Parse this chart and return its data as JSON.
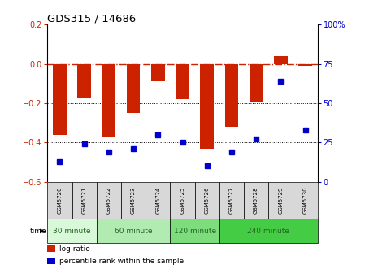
{
  "title": "GDS315 / 14686",
  "samples": [
    "GSM5720",
    "GSM5721",
    "GSM5722",
    "GSM5723",
    "GSM5724",
    "GSM5725",
    "GSM5726",
    "GSM5727",
    "GSM5728",
    "GSM5729",
    "GSM5730"
  ],
  "log_ratio": [
    -0.36,
    -0.17,
    -0.37,
    -0.25,
    -0.09,
    -0.18,
    -0.43,
    -0.32,
    -0.19,
    0.04,
    -0.01
  ],
  "percentile": [
    13,
    24,
    19,
    21,
    30,
    25,
    10,
    19,
    27,
    64,
    33
  ],
  "groups": [
    {
      "label": "30 minute",
      "start": 0,
      "end": 2,
      "color": "#d9f7d9"
    },
    {
      "label": "60 minute",
      "start": 2,
      "end": 5,
      "color": "#b2ebb2"
    },
    {
      "label": "120 minute",
      "start": 5,
      "end": 7,
      "color": "#7ddd7d"
    },
    {
      "label": "240 minute",
      "start": 7,
      "end": 11,
      "color": "#44cc44"
    }
  ],
  "ylim_left": [
    -0.6,
    0.2
  ],
  "ylim_right": [
    0,
    100
  ],
  "bar_color": "#cc2200",
  "dot_color": "#0000cc",
  "zero_line_color": "#cc2200",
  "grid_color": "#000000",
  "left_ticks": [
    -0.6,
    -0.4,
    -0.2,
    0.0,
    0.2
  ],
  "right_ticks": [
    0,
    25,
    50,
    75,
    100
  ],
  "right_tick_labels": [
    "0",
    "25",
    "50",
    "75",
    "100%"
  ],
  "group_text_color": "#226622"
}
